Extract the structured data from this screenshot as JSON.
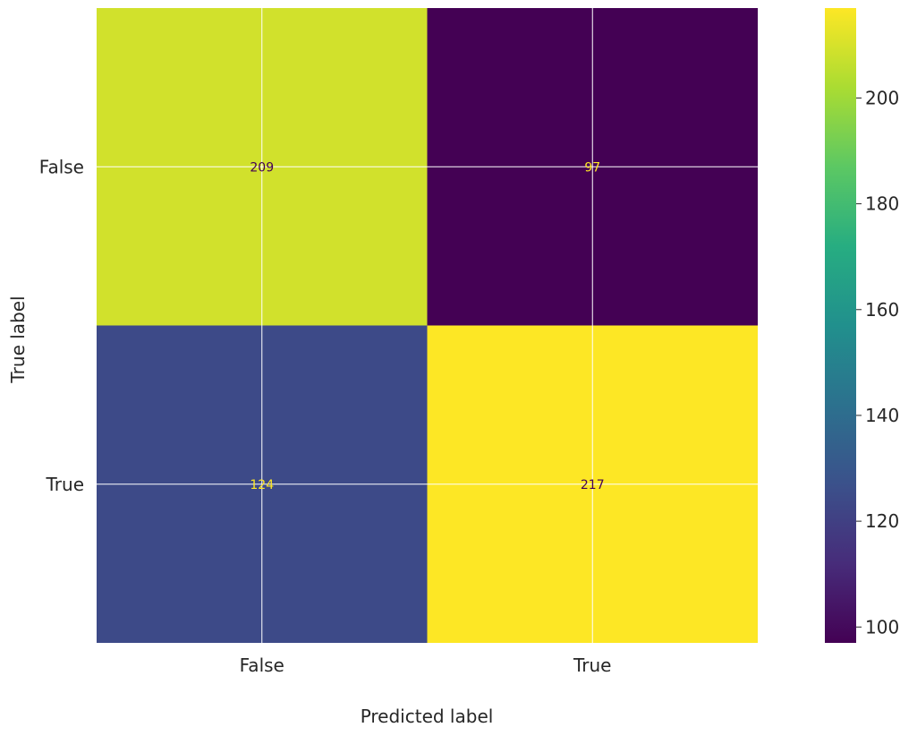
{
  "chart_data": {
    "type": "heatmap",
    "title": "",
    "xlabel": "Predicted label",
    "ylabel": "True label",
    "x_categories": [
      "False",
      "True"
    ],
    "y_categories": [
      "False",
      "True"
    ],
    "values": [
      [
        209,
        97
      ],
      [
        124,
        217
      ]
    ],
    "colormap": "viridis",
    "colorbar": {
      "min": 97,
      "max": 217,
      "ticks": [
        100,
        120,
        140,
        160,
        180,
        200
      ]
    },
    "grid": true
  }
}
